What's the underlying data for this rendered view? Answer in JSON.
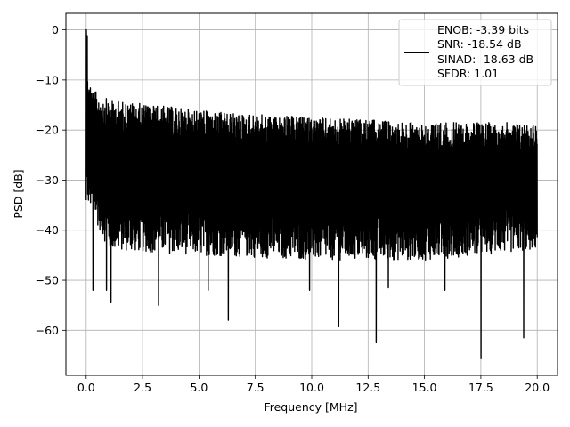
{
  "chart_data": {
    "type": "line",
    "title": "",
    "xlabel": "Frequency [MHz]",
    "ylabel": "PSD [dB]",
    "xlim": [
      -0.9,
      20.9
    ],
    "ylim": [
      -69,
      3.3
    ],
    "grid": true,
    "x_ticks": [
      0.0,
      2.5,
      5.0,
      7.5,
      10.0,
      12.5,
      15.0,
      17.5,
      20.0
    ],
    "x_tick_labels": [
      "0.0",
      "2.5",
      "5.0",
      "7.5",
      "10.0",
      "12.5",
      "15.0",
      "17.5",
      "20.0"
    ],
    "y_ticks": [
      0,
      -10,
      -20,
      -30,
      -40,
      -50,
      -60
    ],
    "y_tick_labels": [
      "0",
      "−10",
      "−20",
      "−30",
      "−40",
      "−50",
      "−60"
    ],
    "legend_position": "top-right",
    "legend_lines": [
      "ENOB: -3.39 bits",
      "SNR: -18.54 dB",
      "SINAD: -18.63 dB",
      "SFDR: 1.01"
    ],
    "series": [
      {
        "color": "#000000",
        "x_range": [
          0,
          20
        ],
        "num_points": 2600,
        "peak_at_dc": 0,
        "upper_envelope": [
          [
            0.0,
            -8
          ],
          [
            0.3,
            -12
          ],
          [
            1.0,
            -14
          ],
          [
            3.0,
            -15
          ],
          [
            6.0,
            -16.5
          ],
          [
            10.0,
            -17.5
          ],
          [
            15.0,
            -18.5
          ],
          [
            20.0,
            -18.5
          ]
        ],
        "lower_envelope": [
          [
            0.0,
            -34
          ],
          [
            1.0,
            -44
          ],
          [
            5.0,
            -45
          ],
          [
            10.0,
            -46
          ],
          [
            15.0,
            -46
          ],
          [
            20.0,
            -44
          ]
        ],
        "notable_minima": [
          [
            0.3,
            -52
          ],
          [
            0.9,
            -52
          ],
          [
            1.1,
            -54.5
          ],
          [
            3.2,
            -55
          ],
          [
            5.4,
            -52
          ],
          [
            6.3,
            -58
          ],
          [
            11.2,
            -59.3
          ],
          [
            12.85,
            -62.5
          ],
          [
            17.5,
            -65.5
          ],
          [
            19.4,
            -61.5
          ],
          [
            13.4,
            -51.5
          ],
          [
            15.9,
            -52
          ],
          [
            9.9,
            -52
          ]
        ]
      }
    ]
  }
}
